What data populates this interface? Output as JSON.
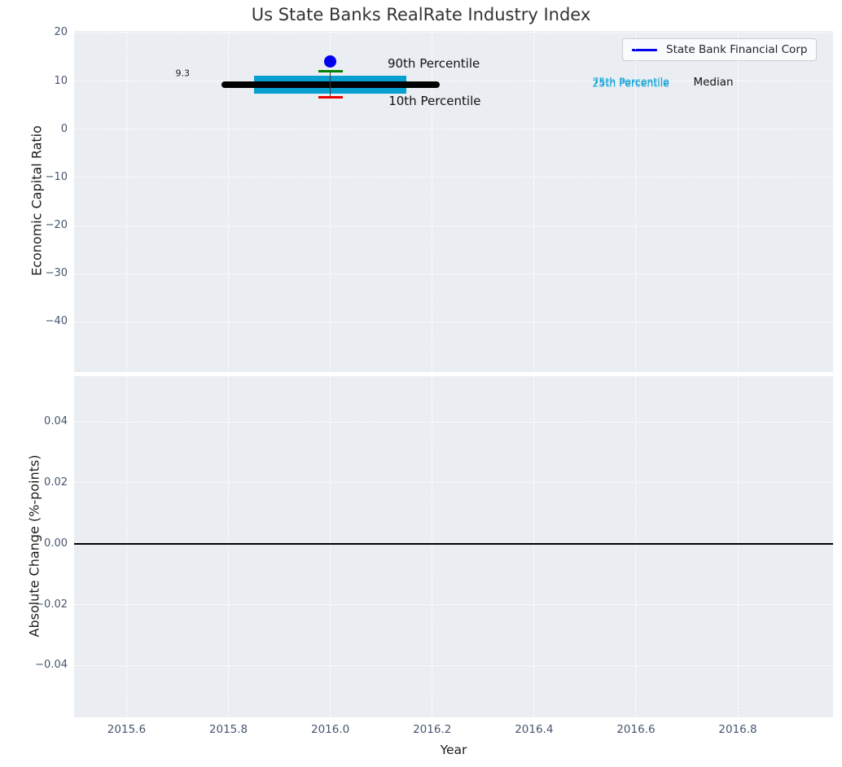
{
  "title": "Us State Banks RealRate Industry Index",
  "legend": {
    "label": "State Bank Financial Corp",
    "line_color": "#0000ee"
  },
  "colors": {
    "figure_bg": "#ffffff",
    "axes_bg": "#eaeef2",
    "grid": "#ffffff",
    "tick_label": "#46556e",
    "axis_label": "#1a1a1a",
    "title": "#333333",
    "median_line": "#000000",
    "iqr_bar": "#089fd1",
    "company_point": "#0000ee",
    "p90_cap": "#008000",
    "p10_cap": "#ee0000",
    "error_line": "#3a3a3a",
    "zero_line": "#000000",
    "annotation_cyan": "#0a9fd4",
    "annotation_black": "#111111"
  },
  "chart_data": [
    {
      "id": "economic-capital-ratio-panel",
      "type": "scatter",
      "title": "",
      "xlabel": "",
      "ylabel": "Economic Capital Ratio",
      "xlim": [
        2015.497,
        2016.987
      ],
      "ylim": [
        -50.4,
        20.4
      ],
      "grid": true,
      "show_xtick_labels": false,
      "xticks": [
        {
          "v": 2015.6,
          "label": "2015.6"
        },
        {
          "v": 2015.8,
          "label": "2015.8"
        },
        {
          "v": 2016.0,
          "label": "2016.0"
        },
        {
          "v": 2016.2,
          "label": "2016.2"
        },
        {
          "v": 2016.4,
          "label": "2016.4"
        },
        {
          "v": 2016.6,
          "label": "2016.6"
        },
        {
          "v": 2016.8,
          "label": "2016.8"
        }
      ],
      "yticks": [
        {
          "v": 20,
          "label": "20"
        },
        {
          "v": 10,
          "label": "10"
        },
        {
          "v": 0,
          "label": "0"
        },
        {
          "v": -10,
          "label": "−10"
        },
        {
          "v": -20,
          "label": "−20"
        },
        {
          "v": -30,
          "label": "−30"
        },
        {
          "v": -40,
          "label": "−40"
        }
      ],
      "series": [
        {
          "name": "State Bank Financial Corp",
          "type": "scatter",
          "x": [
            2016.0
          ],
          "y": [
            14.1
          ],
          "color": "#0000ee",
          "marker_px": 15
        }
      ],
      "industry_box": {
        "x": 2016.0,
        "median": 9.3,
        "median_span": [
          2015.793,
          2016.208
        ],
        "p75": 11.1,
        "p25": 7.4,
        "iqr_span": [
          2015.85,
          2016.15
        ],
        "p90": 12.0,
        "p10": 6.6
      },
      "annotations": [
        {
          "name": "median-value-label",
          "text": "9.3",
          "x": 2015.71,
          "y": 11.6,
          "color": "#1a1a1a",
          "size": 11
        },
        {
          "name": "p90-label",
          "text": "90th Percentile",
          "x": 2016.203,
          "y": 13.7,
          "color": "#111111",
          "size": 15
        },
        {
          "name": "p10-label",
          "text": "10th Percentile",
          "x": 2016.205,
          "y": 5.8,
          "color": "#111111",
          "size": 15
        },
        {
          "name": "p75-label",
          "text": "75th Percentile",
          "x": 2016.59,
          "y": 9.87,
          "color": "#0a9fd4",
          "size": 12.5
        },
        {
          "name": "p25-label",
          "text": "25th Percentile",
          "x": 2016.59,
          "y": 9.66,
          "color": "#0a9fd4",
          "size": 12.5
        },
        {
          "name": "median-label",
          "text": "Median",
          "x": 2016.752,
          "y": 9.78,
          "color": "#111111",
          "size": 13.5
        }
      ]
    },
    {
      "id": "absolute-change-panel",
      "type": "line",
      "title": "",
      "xlabel": "Year",
      "ylabel": "Absolute Change (%-points)",
      "xlim": [
        2015.497,
        2016.987
      ],
      "ylim": [
        -0.057,
        0.055
      ],
      "grid": true,
      "show_xtick_labels": true,
      "xticks": [
        {
          "v": 2015.6,
          "label": "2015.6"
        },
        {
          "v": 2015.8,
          "label": "2015.8"
        },
        {
          "v": 2016.0,
          "label": "2016.0"
        },
        {
          "v": 2016.2,
          "label": "2016.2"
        },
        {
          "v": 2016.4,
          "label": "2016.4"
        },
        {
          "v": 2016.6,
          "label": "2016.6"
        },
        {
          "v": 2016.8,
          "label": "2016.8"
        }
      ],
      "yticks": [
        {
          "v": 0.04,
          "label": "0.04"
        },
        {
          "v": 0.02,
          "label": "0.02"
        },
        {
          "v": 0.0,
          "label": "0.00"
        },
        {
          "v": -0.02,
          "label": "−0.02"
        },
        {
          "v": -0.04,
          "label": "−0.04"
        }
      ],
      "series": [],
      "zero_line": 0.0
    }
  ]
}
